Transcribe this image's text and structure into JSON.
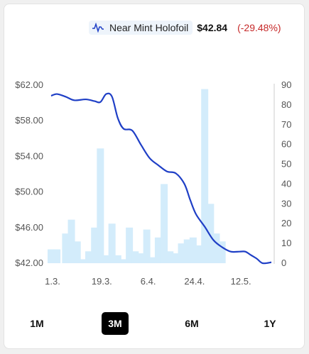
{
  "legend": {
    "label": "Near Mint Holofoil",
    "price": "$42.84",
    "change": "(-29.48%)",
    "icon": "line-chart-icon"
  },
  "ranges": [
    {
      "label": "1M",
      "active": false
    },
    {
      "label": "3M",
      "active": true
    },
    {
      "label": "6M",
      "active": false
    },
    {
      "label": "1Y",
      "active": false
    }
  ],
  "colors": {
    "line": "#1f3fc6",
    "bar": "#d3ecfb",
    "change_negative": "#c62828"
  },
  "chart_data": {
    "type": "line",
    "x_tick_labels": [
      "1.3.",
      "19.3.",
      "6.4.",
      "24.4.",
      "12.5."
    ],
    "y_left_ticks": [
      "$62.00",
      "$58.00",
      "$54.00",
      "$50.00",
      "$46.00",
      "$42.00"
    ],
    "y_right_ticks": [
      "90",
      "80",
      "70",
      "60",
      "50",
      "40",
      "30",
      "20",
      "10",
      "0"
    ],
    "y_left_range": [
      42,
      62
    ],
    "y_right_range": [
      0,
      90
    ],
    "price_series": [
      {
        "day": 0,
        "price": 60.8
      },
      {
        "day": 2,
        "price": 61.0
      },
      {
        "day": 5,
        "price": 60.7
      },
      {
        "day": 8,
        "price": 60.3
      },
      {
        "day": 12,
        "price": 60.4
      },
      {
        "day": 15,
        "price": 60.2
      },
      {
        "day": 17,
        "price": 60.1
      },
      {
        "day": 19,
        "price": 61.0
      },
      {
        "day": 21,
        "price": 60.7
      },
      {
        "day": 23,
        "price": 58.3
      },
      {
        "day": 25,
        "price": 57.1
      },
      {
        "day": 28,
        "price": 56.9
      },
      {
        "day": 31,
        "price": 55.3
      },
      {
        "day": 34,
        "price": 53.8
      },
      {
        "day": 37,
        "price": 53.0
      },
      {
        "day": 40,
        "price": 52.3
      },
      {
        "day": 43,
        "price": 52.1
      },
      {
        "day": 46,
        "price": 50.9
      },
      {
        "day": 48,
        "price": 49.1
      },
      {
        "day": 50,
        "price": 47.5
      },
      {
        "day": 53,
        "price": 46.1
      },
      {
        "day": 56,
        "price": 44.6
      },
      {
        "day": 59,
        "price": 43.8
      },
      {
        "day": 62,
        "price": 43.3
      },
      {
        "day": 65,
        "price": 43.3
      },
      {
        "day": 67,
        "price": 43.3
      },
      {
        "day": 69,
        "price": 42.9
      },
      {
        "day": 71,
        "price": 42.5
      },
      {
        "day": 73,
        "price": 42.0
      },
      {
        "day": 76,
        "price": 42.1
      }
    ],
    "volume_bars": [
      {
        "day": 0,
        "volume": 7
      },
      {
        "day": 2,
        "volume": 7
      },
      {
        "day": 5,
        "volume": 15
      },
      {
        "day": 7,
        "volume": 22
      },
      {
        "day": 9,
        "volume": 11
      },
      {
        "day": 11,
        "volume": 2
      },
      {
        "day": 13,
        "volume": 6
      },
      {
        "day": 15,
        "volume": 18
      },
      {
        "day": 17,
        "volume": 58
      },
      {
        "day": 19,
        "volume": 4
      },
      {
        "day": 21,
        "volume": 20
      },
      {
        "day": 23,
        "volume": 4
      },
      {
        "day": 25,
        "volume": 2
      },
      {
        "day": 27,
        "volume": 18
      },
      {
        "day": 29,
        "volume": 6
      },
      {
        "day": 31,
        "volume": 5
      },
      {
        "day": 33,
        "volume": 17
      },
      {
        "day": 35,
        "volume": 3
      },
      {
        "day": 37,
        "volume": 13
      },
      {
        "day": 39,
        "volume": 40
      },
      {
        "day": 41,
        "volume": 6
      },
      {
        "day": 43,
        "volume": 5
      },
      {
        "day": 45,
        "volume": 10
      },
      {
        "day": 47,
        "volume": 12
      },
      {
        "day": 49,
        "volume": 13
      },
      {
        "day": 51,
        "volume": 9
      },
      {
        "day": 53,
        "volume": 88
      },
      {
        "day": 55,
        "volume": 30
      },
      {
        "day": 57,
        "volume": 15
      },
      {
        "day": 59,
        "volume": 11
      }
    ]
  }
}
